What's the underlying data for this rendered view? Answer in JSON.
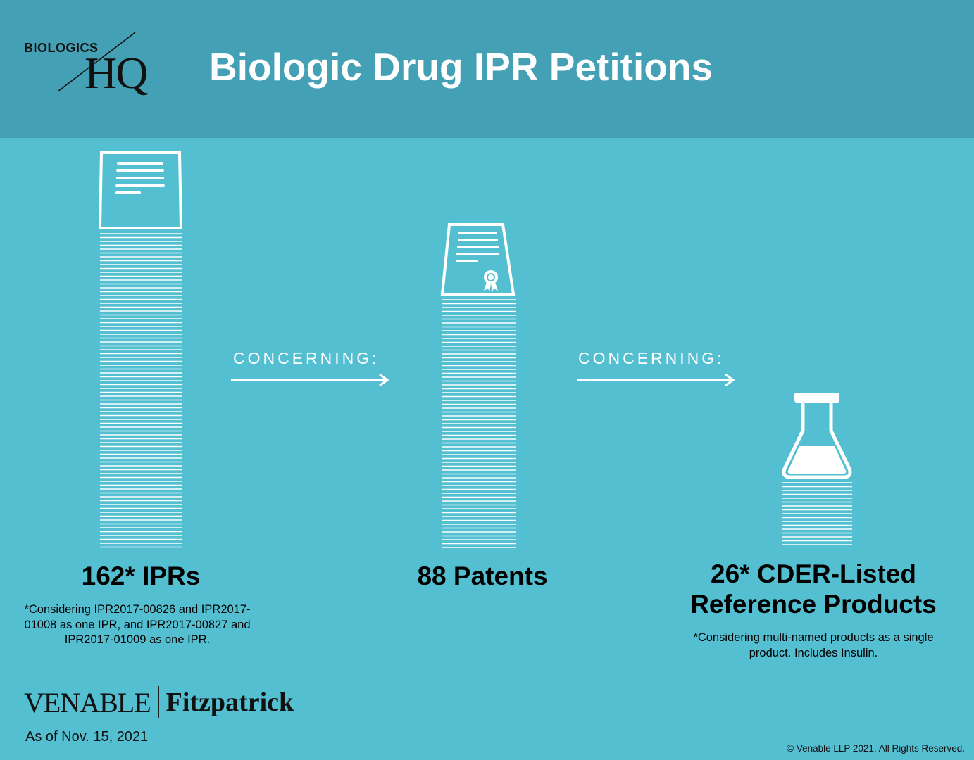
{
  "header": {
    "logo_small": "BIOLOGICS",
    "logo_large": "HQ",
    "title": "Biologic Drug IPR Petitions"
  },
  "columns": [
    {
      "label": "162* IPRs",
      "value": 162,
      "icon": "document-icon",
      "note": "*Considering IPR2017-00826 and IPR2017-01008 as one IPR, and IPR2017-00827 and IPR2017-01009 as one IPR."
    },
    {
      "label": "88 Patents",
      "value": 88,
      "icon": "certificate-document-icon"
    },
    {
      "label_line1": "26* CDER-Listed",
      "label_line2": "Reference Products",
      "value": 26,
      "icon": "flask-icon",
      "note": "*Considering multi-named products as a single product.  Includes Insulin."
    }
  ],
  "connectors": [
    {
      "text": "CONCERNING:",
      "icon": "right-arrow-icon"
    },
    {
      "text": "CONCERNING:",
      "icon": "right-arrow-icon"
    }
  ],
  "footer": {
    "firm_left": "VENABLE",
    "firm_right": "Fitzpatrick",
    "as_of": "As of Nov. 15, 2021",
    "copyright": "© Venable LLP 2021. All Rights Reserved."
  },
  "colors": {
    "background": "#55bfd2",
    "header": "#44a1b5",
    "icon": "#ffffff",
    "text": "#000000"
  }
}
